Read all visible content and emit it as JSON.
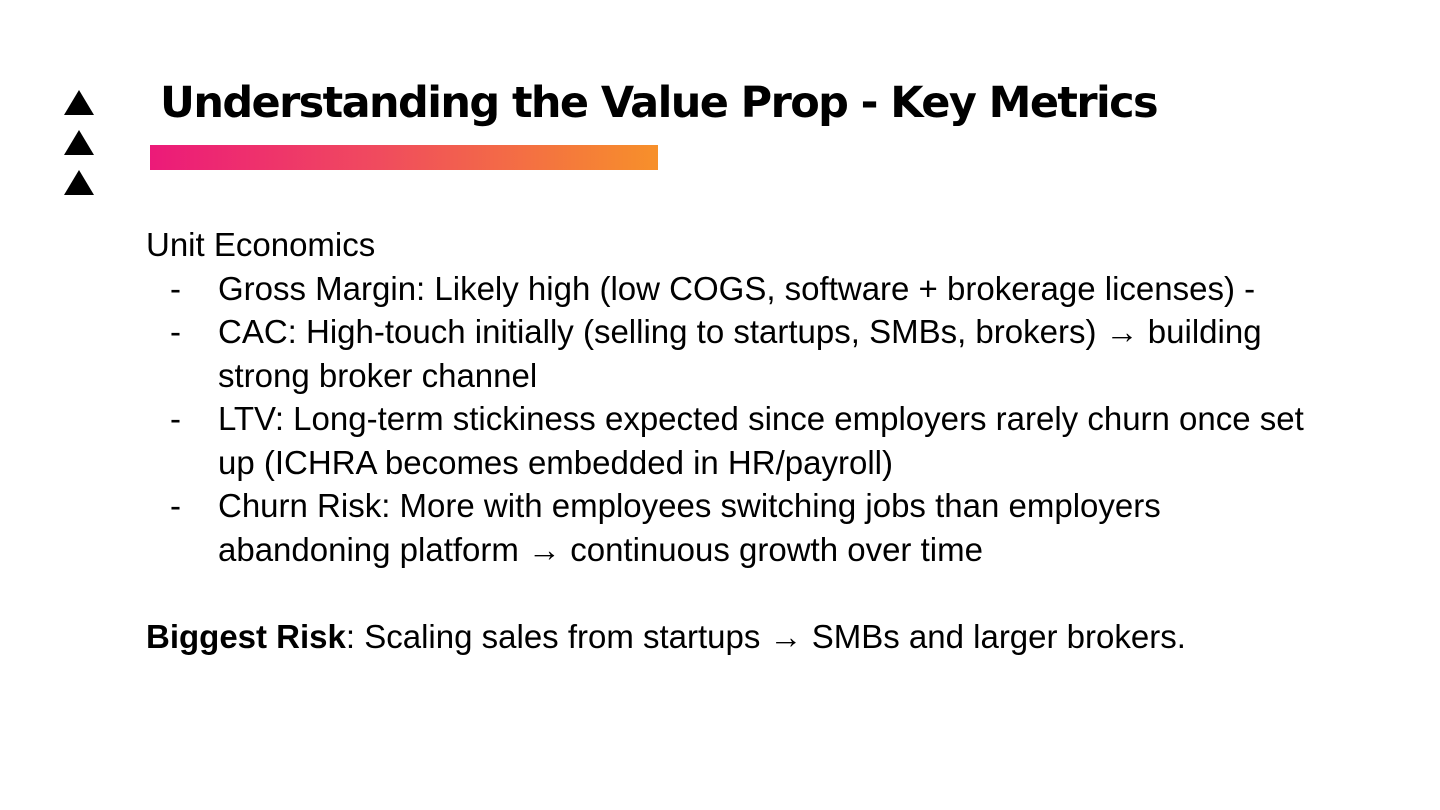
{
  "slide": {
    "title": "Understanding the Value Prop - Key Metrics",
    "logo_icon": "stacked-triangles-icon",
    "accent_gradient": [
      "#ec1a79",
      "#f7902a"
    ]
  },
  "content": {
    "section_heading": "Unit Economics",
    "bullet_marker": "-",
    "bullets": [
      "Gross Margin: Likely high (low COGS, software + brokerage licenses) -",
      "CAC: High-touch initially (selling to startups, SMBs, brokers) → building strong broker channel",
      "LTV: Long-term stickiness expected since employers rarely churn once set up (ICHRA becomes embedded in HR/payroll)",
      "Churn Risk: More with employees switching jobs than employers abandoning platform → continuous growth over time"
    ],
    "risk_label": "Biggest Risk",
    "risk_text": ": Scaling sales from startups → SMBs and larger brokers."
  }
}
